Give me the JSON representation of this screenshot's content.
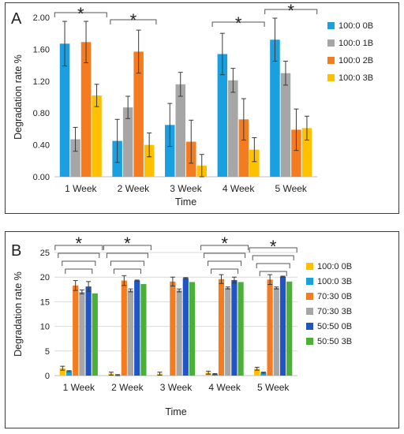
{
  "chart_data": [
    {
      "panel_label": "A",
      "type": "bar",
      "categories": [
        "1 Week",
        "2 Week",
        "3 Week",
        "4 Week",
        "5 Week"
      ],
      "xlabel": "Time",
      "ylabel": "Degradation rate  %",
      "ylim": [
        0,
        2.0
      ],
      "yticks": [
        "0.00",
        "0.40",
        "0.80",
        "1.20",
        "1.60",
        "2.00"
      ],
      "legend_position": "right",
      "grid": false,
      "series": [
        {
          "name": "100:0 0B",
          "color": "#1a9fe0",
          "values": [
            1.67,
            0.45,
            0.65,
            1.54,
            1.72
          ],
          "errors": [
            0.28,
            0.27,
            0.27,
            0.26,
            0.27
          ]
        },
        {
          "name": "100:0 1B",
          "color": "#a6a6a6",
          "values": [
            0.47,
            0.87,
            1.16,
            1.21,
            1.3
          ],
          "errors": [
            0.15,
            0.14,
            0.15,
            0.15,
            0.15
          ]
        },
        {
          "name": "100:0 2B",
          "color": "#f47b20",
          "values": [
            1.69,
            1.57,
            0.44,
            0.72,
            0.59
          ],
          "errors": [
            0.26,
            0.27,
            0.27,
            0.26,
            0.26
          ]
        },
        {
          "name": "100:0 3B",
          "color": "#ffc000",
          "values": [
            1.02,
            0.4,
            0.14,
            0.34,
            0.61
          ],
          "errors": [
            0.14,
            0.15,
            0.14,
            0.15,
            0.15
          ]
        }
      ],
      "significance_star": "*"
    },
    {
      "panel_label": "B",
      "type": "bar",
      "categories": [
        "1 Week",
        "2 Week",
        "3 Week",
        "4 Week",
        "5 Week"
      ],
      "xlabel": "Time",
      "ylabel": "Degradation rate  %",
      "ylim": [
        0,
        25
      ],
      "yticks": [
        "0",
        "5",
        "10",
        "15",
        "20",
        "25"
      ],
      "legend_position": "right",
      "grid": true,
      "series": [
        {
          "name": "100:0 0B",
          "color": "#ffc000",
          "values": [
            1.5,
            0.4,
            0.4,
            0.6,
            1.4
          ],
          "errors": [
            0.4,
            0.3,
            0.3,
            0.3,
            0.3
          ]
        },
        {
          "name": "100:0 3B",
          "color": "#1a9fe0",
          "values": [
            0.9,
            0.1,
            0.0,
            0.3,
            0.6
          ],
          "errors": [
            0.1,
            0.1,
            0.0,
            0.1,
            0.1
          ]
        },
        {
          "name": "70:30 0B",
          "color": "#f47b20",
          "values": [
            18.3,
            19.3,
            19.1,
            19.6,
            19.5
          ],
          "errors": [
            1.0,
            1.0,
            0.9,
            0.9,
            1.0
          ]
        },
        {
          "name": "70:30 3B",
          "color": "#a6a6a6",
          "values": [
            17.0,
            17.3,
            17.3,
            17.8,
            17.8
          ],
          "errors": [
            0.4,
            0.3,
            0.3,
            0.2,
            0.2
          ]
        },
        {
          "name": "50:50 0B",
          "color": "#2255c4",
          "values": [
            18.1,
            19.3,
            19.8,
            19.4,
            20.1
          ],
          "errors": [
            1.0,
            0.1,
            0.1,
            0.6,
            0.1
          ]
        },
        {
          "name": "50:50 3B",
          "color": "#4caf3a",
          "values": [
            16.7,
            18.6,
            19.0,
            19.0,
            19.1
          ],
          "errors": [
            0.0,
            0.0,
            0.0,
            0.0,
            0.0
          ]
        }
      ],
      "significance_star": "*"
    }
  ]
}
